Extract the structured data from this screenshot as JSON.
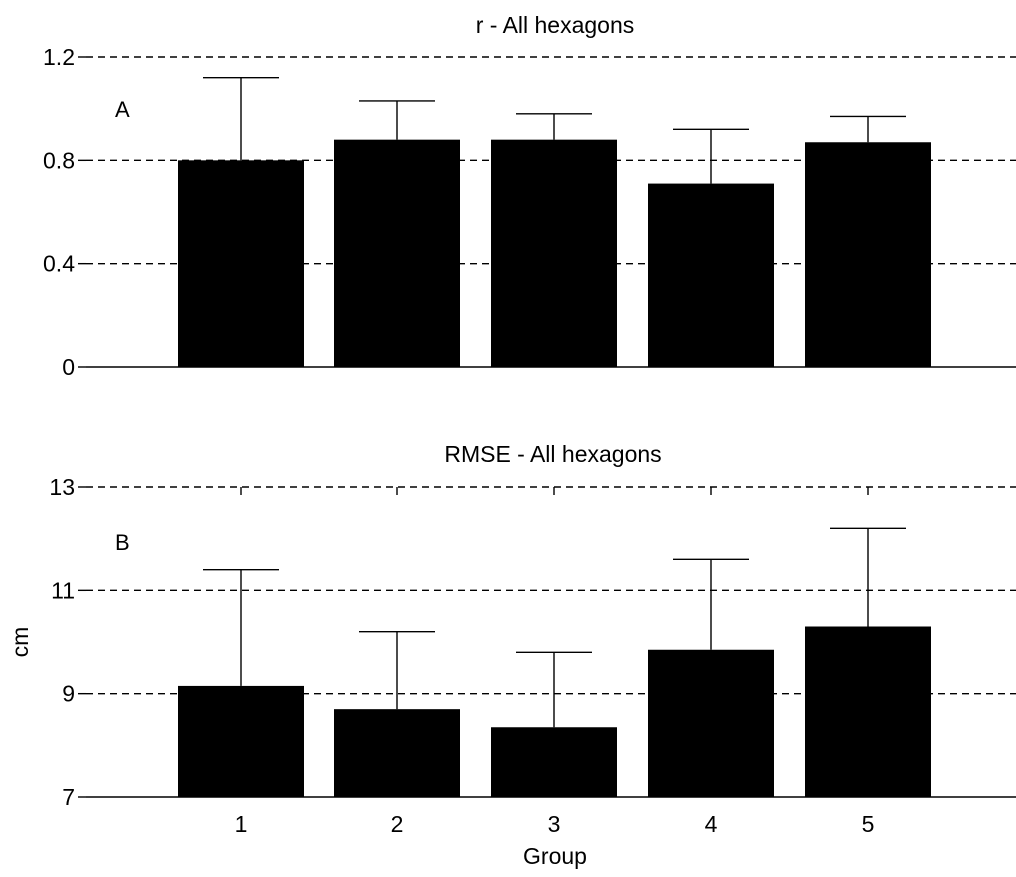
{
  "chart_data": [
    {
      "type": "bar",
      "title": "r - All hexagons",
      "panel_label": "A",
      "xlabel": "",
      "ylabel": "",
      "categories": [
        "1",
        "2",
        "3",
        "4",
        "5"
      ],
      "values": [
        0.8,
        0.88,
        0.88,
        0.71,
        0.87
      ],
      "error_upper": [
        1.12,
        1.03,
        0.98,
        0.92,
        0.97
      ],
      "ylim": [
        0,
        1.2
      ],
      "yticks": [
        "0",
        "0.4",
        "0.8",
        "1.2"
      ],
      "ytick_values": [
        0,
        0.4,
        0.8,
        1.2
      ],
      "grid": "dashed horizontal",
      "show_xtick_labels": false,
      "bar_color": "#000000"
    },
    {
      "type": "bar",
      "title": "RMSE  - All hexagons",
      "panel_label": "B",
      "xlabel": "Group",
      "ylabel": "cm",
      "categories": [
        "1",
        "2",
        "3",
        "4",
        "5"
      ],
      "values": [
        9.15,
        8.7,
        8.35,
        9.85,
        10.3
      ],
      "error_upper": [
        11.4,
        10.2,
        9.8,
        11.6,
        12.2
      ],
      "ylim": [
        7,
        13
      ],
      "yticks": [
        "7",
        "9",
        "11",
        "13"
      ],
      "ytick_values": [
        7,
        9,
        11,
        13
      ],
      "grid": "dashed horizontal",
      "show_xtick_labels": true,
      "bar_color": "#000000"
    }
  ]
}
